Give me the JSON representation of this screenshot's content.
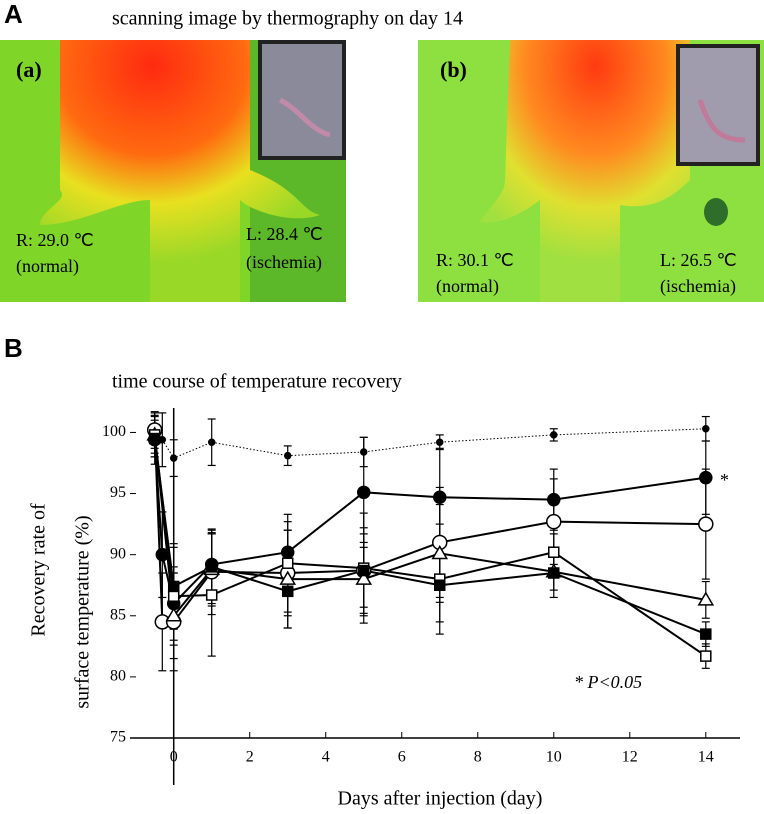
{
  "panel_a": {
    "label": "A",
    "title": "scanning image by thermography on day 14",
    "images": [
      {
        "label": "(a)",
        "right": "R: 29.0 ℃",
        "right_note": "(normal)",
        "left": "L: 28.4 ℃",
        "left_note": "(ischemia)"
      },
      {
        "label": "(b)",
        "right": "R: 30.1 ℃",
        "right_note": "(normal)",
        "left": "L: 26.5 ℃",
        "left_note": "(ischemia)"
      }
    ]
  },
  "chart_data": {
    "type": "line",
    "panel_label": "B",
    "title": "time course of  temperature recovery",
    "y_label": [
      "Recovery rate of",
      "surface temperature (%)"
    ],
    "x_label": "Days after injection (day)",
    "xlim": [
      -1.15,
      14.9
    ],
    "ylim": [
      75,
      102
    ],
    "xticks": [
      0,
      2,
      4,
      6,
      8,
      10,
      12,
      14
    ],
    "yticks": [
      75,
      80,
      85,
      90,
      95,
      100
    ],
    "annotations": [
      "*",
      "* P<0.05"
    ],
    "series": [
      {
        "marker": "dot",
        "line": "dotted",
        "color": "#000000",
        "x": [
          -0.3,
          0,
          1,
          3,
          5,
          7,
          10,
          14
        ],
        "values": [
          99.4,
          97.9,
          99.2,
          98.1,
          98.4,
          99.2,
          99.8,
          100.3
        ],
        "errors": [
          2.2,
          1.5,
          1.9,
          0.8,
          1.2,
          0.6,
          0.5,
          1.0
        ]
      },
      {
        "marker": "circle",
        "line": "solid",
        "color": "#000000",
        "x": [
          -0.5,
          -0.3,
          0,
          1,
          3,
          5,
          7,
          10,
          14
        ],
        "values": [
          99.4,
          90.0,
          86.0,
          89.2,
          90.2,
          95.1,
          94.7,
          94.5,
          96.3
        ],
        "errors": [
          2.0,
          3.5,
          3.0,
          2.5,
          2.5,
          4.5,
          4.0,
          2.5,
          3.0
        ]
      },
      {
        "marker": "circle-open",
        "line": "solid",
        "color": "#000000",
        "x": [
          -0.5,
          -0.3,
          0,
          1,
          3,
          5,
          7,
          10,
          14
        ],
        "values": [
          100.2,
          84.5,
          84.5,
          88.6,
          88.5,
          88.7,
          91.0,
          92.7,
          92.5
        ],
        "errors": [
          1.5,
          4.0,
          4.0,
          3.5,
          3.5,
          3.5,
          4.5,
          3.5,
          4.5
        ]
      },
      {
        "marker": "triangle-open",
        "line": "solid",
        "color": "#000000",
        "x": [
          -0.5,
          0,
          1,
          3,
          5,
          7,
          10,
          14
        ],
        "values": [
          99.8,
          85.0,
          88.8,
          88.0,
          88.0,
          90.1,
          88.6,
          86.3
        ],
        "errors": [
          1.5,
          3.5,
          3.0,
          4.0,
          3.0,
          4.0,
          1.5,
          1.5
        ]
      },
      {
        "marker": "square-open",
        "line": "solid",
        "color": "#000000",
        "x": [
          -0.5,
          0,
          1,
          3,
          5,
          7,
          10,
          14
        ],
        "values": [
          99.8,
          86.6,
          86.7,
          89.3,
          88.9,
          88.0,
          90.2,
          81.7
        ],
        "errors": [
          1.8,
          4.0,
          5.0,
          4.0,
          4.5,
          4.5,
          1.5,
          1.0
        ]
      },
      {
        "marker": "square",
        "line": "solid",
        "color": "#000000",
        "x": [
          -0.5,
          0,
          1,
          3,
          5,
          7,
          10,
          14
        ],
        "values": [
          99.5,
          87.4,
          89.0,
          87.0,
          88.7,
          87.5,
          88.5,
          83.5
        ],
        "errors": [
          1.5,
          3.5,
          3.0,
          3.0,
          3.0,
          3.0,
          2.0,
          1.0
        ]
      }
    ]
  }
}
